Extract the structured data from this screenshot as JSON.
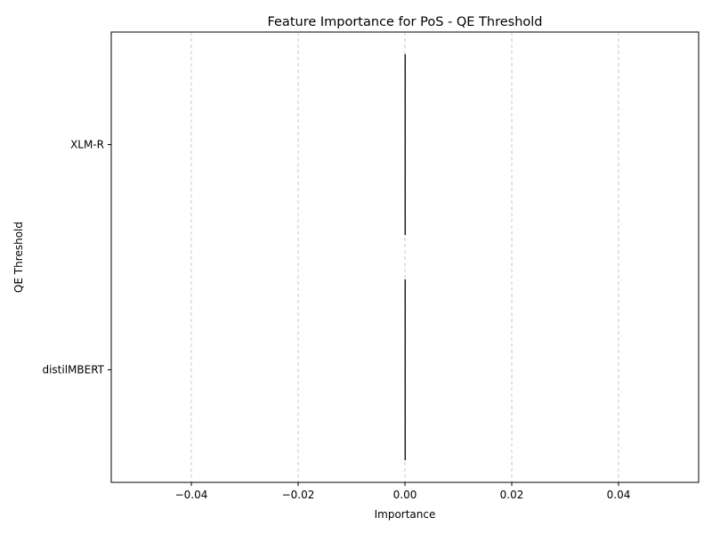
{
  "chart_data": {
    "type": "bar",
    "orientation": "horizontal",
    "title": "Feature Importance for PoS - QE Threshold",
    "xlabel": "Importance",
    "ylabel": "QE Threshold",
    "categories": [
      "XLM-R",
      "distilMBERT"
    ],
    "values": [
      0.0,
      0.0
    ],
    "xlim": [
      -0.055,
      0.055
    ],
    "xticks": [
      -0.04,
      -0.02,
      0.0,
      0.02,
      0.04
    ],
    "xtick_labels": [
      "−0.04",
      "−0.02",
      "0.00",
      "0.02",
      "0.04"
    ],
    "grid": "x-dashed",
    "colors": {
      "grid": "#c8c8c8",
      "bar_edge": "#000000",
      "axis": "#000000"
    }
  }
}
